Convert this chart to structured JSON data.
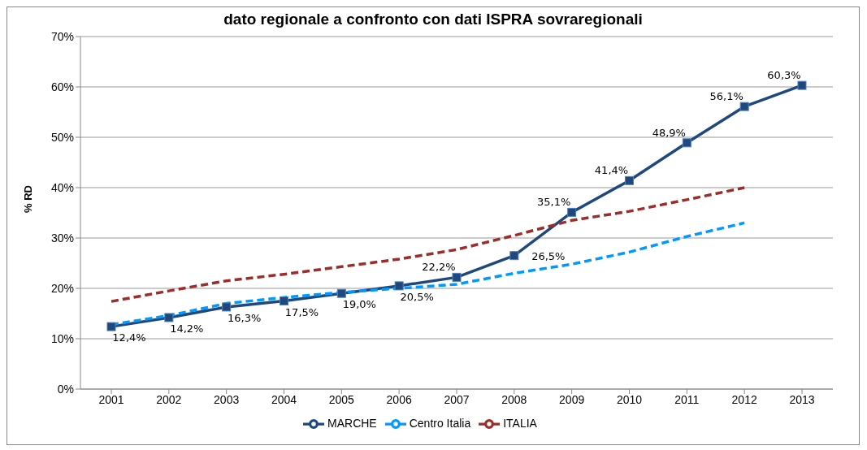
{
  "chart_data": {
    "type": "line",
    "title": "dato regionale a confronto con dati ISPRA sovraregionali",
    "ylabel": "% RD",
    "categories": [
      "2001",
      "2002",
      "2003",
      "2004",
      "2005",
      "2006",
      "2007",
      "2008",
      "2009",
      "2010",
      "2011",
      "2012",
      "2013"
    ],
    "ylim": [
      0,
      70
    ],
    "yticks": [
      {
        "value": 0,
        "label": "0%"
      },
      {
        "value": 10,
        "label": "10%"
      },
      {
        "value": 20,
        "label": "20%"
      },
      {
        "value": 30,
        "label": "30%"
      },
      {
        "value": 40,
        "label": "40%"
      },
      {
        "value": 50,
        "label": "50%"
      },
      {
        "value": 60,
        "label": "60%"
      },
      {
        "value": 70,
        "label": "70%"
      }
    ],
    "grid": "y",
    "legend": "bottom",
    "series": [
      {
        "name": "MARCHE",
        "color": "#1f497d",
        "marker": "square",
        "line_style": "solid",
        "values": [
          12.4,
          14.2,
          16.3,
          17.5,
          19.0,
          20.5,
          22.2,
          26.5,
          35.1,
          41.4,
          48.9,
          56.1,
          60.3
        ],
        "value_labels": [
          "12,4%",
          "14,2%",
          "16,3%",
          "17,5%",
          "19,0%",
          "20,5%",
          "22,2%",
          "26,5%",
          "35,1%",
          "41,4%",
          "48,9%",
          "56,1%",
          "60,3%"
        ]
      },
      {
        "name": "Centro Italia",
        "color": "#0099ff",
        "marker": "none",
        "line_style": "dashed",
        "values": [
          12.8,
          14.6,
          17.0,
          18.2,
          19.2,
          20.0,
          20.8,
          23.0,
          24.8,
          27.2,
          30.3,
          33.0,
          null
        ]
      },
      {
        "name": "ITALIA",
        "color": "#9b2d2a",
        "marker": "none",
        "line_style": "dashed",
        "values": [
          17.4,
          19.5,
          21.5,
          22.8,
          24.3,
          25.8,
          27.7,
          30.5,
          33.5,
          35.3,
          37.6,
          40.0,
          null
        ]
      }
    ]
  }
}
